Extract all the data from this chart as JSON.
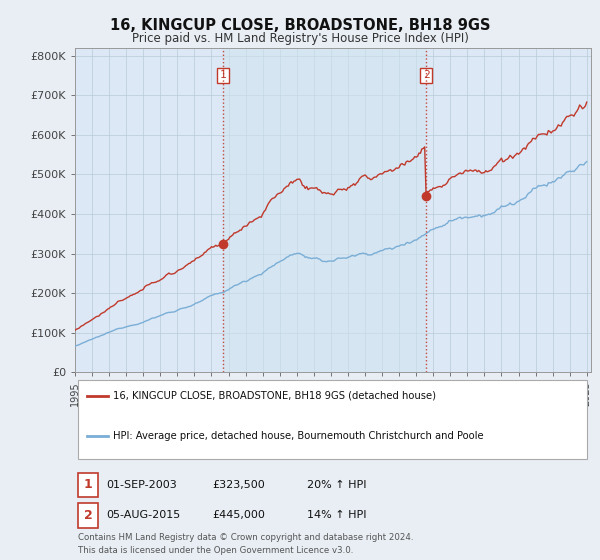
{
  "title": "16, KINGCUP CLOSE, BROADSTONE, BH18 9GS",
  "subtitle": "Price paid vs. HM Land Registry's House Price Index (HPI)",
  "ylabel_ticks": [
    "£0",
    "£100K",
    "£200K",
    "£300K",
    "£400K",
    "£500K",
    "£600K",
    "£700K",
    "£800K"
  ],
  "ytick_vals": [
    0,
    100000,
    200000,
    300000,
    400000,
    500000,
    600000,
    700000,
    800000
  ],
  "ylim": [
    0,
    820000
  ],
  "xlim_start": 1995.25,
  "xlim_end": 2025.25,
  "hpi_color": "#7aaed6",
  "hpi_fill_color": "#dce8f5",
  "price_color": "#c0392b",
  "marker1_date": 2003.67,
  "marker1_price": 323500,
  "marker1_label": "1",
  "marker2_date": 2015.58,
  "marker2_price": 445000,
  "marker2_label": "2",
  "vline_color": "#c0392b",
  "vline_style": ":",
  "legend_line1": "16, KINGCUP CLOSE, BROADSTONE, BH18 9GS (detached house)",
  "legend_line2": "HPI: Average price, detached house, Bournemouth Christchurch and Poole",
  "table_row1": [
    "1",
    "01-SEP-2003",
    "£323,500",
    "20% ↑ HPI"
  ],
  "table_row2": [
    "2",
    "05-AUG-2015",
    "£445,000",
    "14% ↑ HPI"
  ],
  "footnote": "Contains HM Land Registry data © Crown copyright and database right 2024.\nThis data is licensed under the Open Government Licence v3.0.",
  "background_color": "#e8eef4",
  "plot_bg_color": "#dce8f5",
  "grid_color": "#b8ccd8"
}
